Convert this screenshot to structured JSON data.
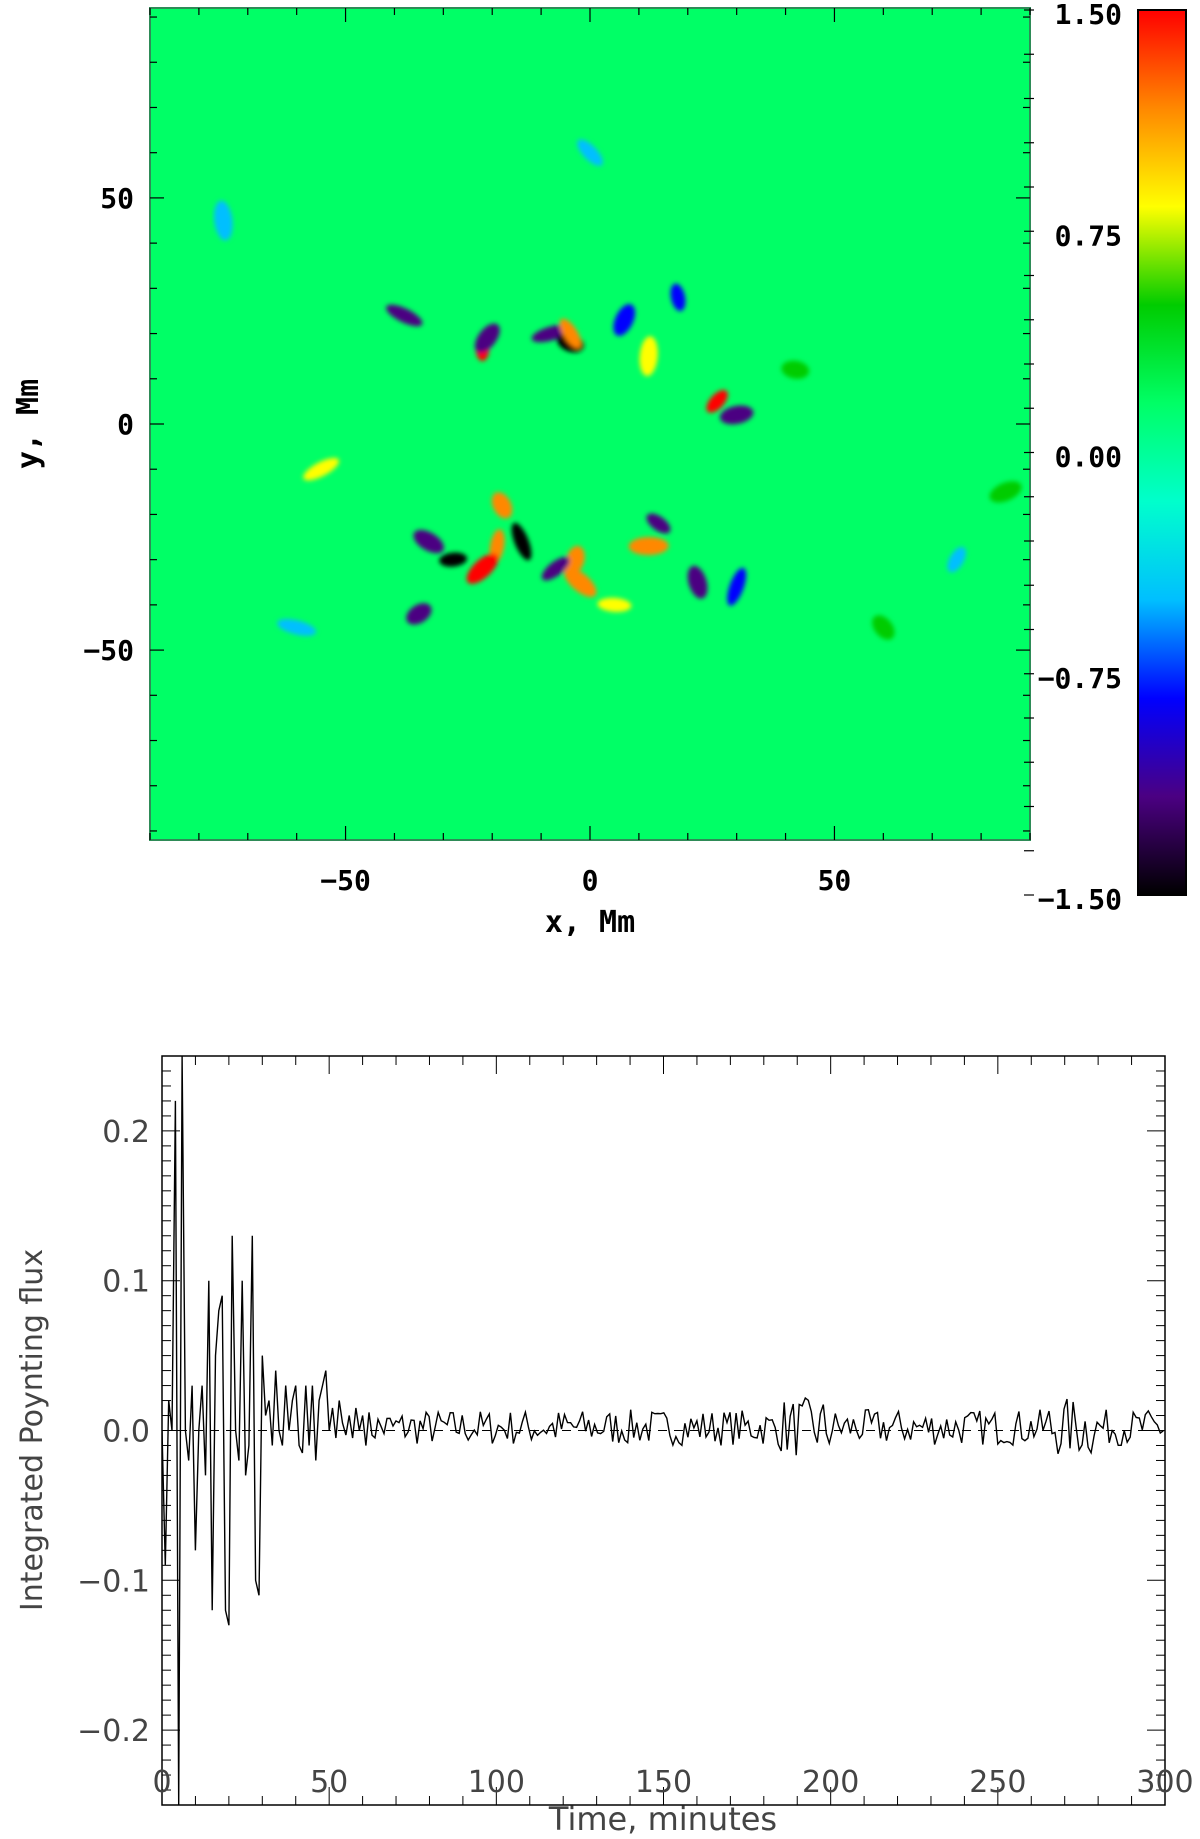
{
  "chart_data": [
    {
      "type": "heatmap",
      "xlabel": "x, Mm",
      "ylabel": "y, Mm",
      "xlim": [
        -90,
        90
      ],
      "ylim": [
        -92,
        92
      ],
      "xticks": [
        {
          "value": -50,
          "label": "−50"
        },
        {
          "value": 0,
          "label": "0"
        },
        {
          "value": 50,
          "label": "50"
        }
      ],
      "yticks": [
        {
          "value": 50,
          "label": "50"
        },
        {
          "value": 0,
          "label": "0"
        },
        {
          "value": -50,
          "label": "−50"
        }
      ],
      "colorbar": {
        "range": [
          -1.5,
          1.5
        ],
        "ticks": [
          {
            "value": 1.5,
            "label": "1.50"
          },
          {
            "value": 0.75,
            "label": "0.75"
          },
          {
            "value": 0.0,
            "label": "0.00"
          },
          {
            "value": -0.75,
            "label": "−0.75"
          },
          {
            "value": -1.5,
            "label": "−1.50"
          }
        ],
        "colors": [
          "#000000",
          "#4b0082",
          "#0000ff",
          "#00bfff",
          "#00ffcc",
          "#00ff66",
          "#00cc00",
          "#ffff00",
          "#ff8800",
          "#ff0000"
        ]
      },
      "background_value": 0.05,
      "features": [
        {
          "x": -22,
          "y": 17,
          "v": 1.5
        },
        {
          "x": -21,
          "y": 19,
          "v": -1.2
        },
        {
          "x": -8,
          "y": 20,
          "v": -1.3
        },
        {
          "x": -4,
          "y": 18,
          "v": -1.4
        },
        {
          "x": -4,
          "y": 20,
          "v": 1.3
        },
        {
          "x": 12,
          "y": 15,
          "v": 0.9
        },
        {
          "x": 26,
          "y": 5,
          "v": 1.4
        },
        {
          "x": 30,
          "y": 2,
          "v": -1.1
        },
        {
          "x": -38,
          "y": 24,
          "v": -1.2
        },
        {
          "x": -18,
          "y": -18,
          "v": 1.3
        },
        {
          "x": -19,
          "y": -27,
          "v": 1.0
        },
        {
          "x": -22,
          "y": -32,
          "v": 1.5
        },
        {
          "x": -28,
          "y": -30,
          "v": -1.4
        },
        {
          "x": -33,
          "y": -26,
          "v": -1.3
        },
        {
          "x": -14,
          "y": -26,
          "v": -1.4
        },
        {
          "x": -3,
          "y": -30,
          "v": 1.3
        },
        {
          "x": -7,
          "y": -32,
          "v": -1.2
        },
        {
          "x": 12,
          "y": -27,
          "v": 1.2
        },
        {
          "x": 14,
          "y": -22,
          "v": -1.1
        },
        {
          "x": 22,
          "y": -35,
          "v": -1.2
        },
        {
          "x": 30,
          "y": -36,
          "v": -1.0
        },
        {
          "x": -35,
          "y": -42,
          "v": -1.1
        },
        {
          "x": 5,
          "y": -40,
          "v": 0.9
        },
        {
          "x": -2,
          "y": -35,
          "v": 1.0
        },
        {
          "x": 18,
          "y": 28,
          "v": -1.0
        },
        {
          "x": 7,
          "y": 23,
          "v": -0.9
        },
        {
          "x": -55,
          "y": -10,
          "v": 0.7
        },
        {
          "x": 42,
          "y": 12,
          "v": 0.6
        },
        {
          "x": 0,
          "y": 60,
          "v": -0.6
        },
        {
          "x": -75,
          "y": 45,
          "v": -0.4
        },
        {
          "x": 75,
          "y": -30,
          "v": -0.5
        },
        {
          "x": 85,
          "y": -15,
          "v": 0.6
        },
        {
          "x": -60,
          "y": -45,
          "v": -0.4
        },
        {
          "x": 60,
          "y": -45,
          "v": 0.5
        }
      ]
    },
    {
      "type": "line",
      "xlabel": "Time, minutes",
      "ylabel": "Integrated Poynting flux",
      "xlim": [
        0,
        300
      ],
      "ylim": [
        -0.25,
        0.25
      ],
      "xticks": [
        0,
        50,
        100,
        150,
        200,
        250,
        300
      ],
      "yticks": [
        -0.2,
        -0.1,
        0.0,
        0.1,
        0.2
      ],
      "ytick_labels": [
        "−0.2",
        "−0.1",
        "0.0",
        "0.1",
        "0.2"
      ],
      "zero_line": true,
      "series": [
        {
          "x": [
            0,
            1,
            2,
            3,
            4,
            5,
            6,
            7,
            8,
            9,
            10,
            11,
            12,
            13,
            14,
            15,
            16,
            17,
            18,
            19,
            20,
            21,
            22,
            23,
            24,
            25,
            26,
            27,
            28,
            29,
            30,
            31,
            32,
            33,
            34,
            35,
            36,
            37,
            38,
            39,
            40,
            41,
            42,
            43,
            44,
            45,
            46,
            47,
            48,
            49,
            50,
            51,
            52,
            53,
            54,
            55,
            56,
            57,
            58,
            59,
            60
          ],
          "y": [
            0.0,
            -0.09,
            0.02,
            0.0,
            0.22,
            -0.25,
            0.25,
            0.0,
            -0.02,
            0.03,
            -0.08,
            0.0,
            0.03,
            -0.03,
            0.1,
            -0.12,
            0.05,
            0.08,
            0.09,
            -0.12,
            -0.13,
            0.13,
            0.0,
            -0.02,
            0.1,
            -0.03,
            -0.01,
            0.13,
            -0.1,
            -0.11,
            0.05,
            0.01,
            0.02,
            -0.01,
            0.04,
            0.0,
            -0.01,
            0.03,
            0.0,
            0.02,
            0.03,
            -0.01,
            -0.015,
            0.03,
            -0.01,
            0.03,
            -0.02,
            0.02,
            0.03,
            0.04,
            0.0,
            0.015,
            -0.005,
            0.02,
            0.005,
            -0.003,
            0.01,
            -0.005,
            0.015,
            0.0,
            0.01
          ]
        }
      ]
    }
  ]
}
